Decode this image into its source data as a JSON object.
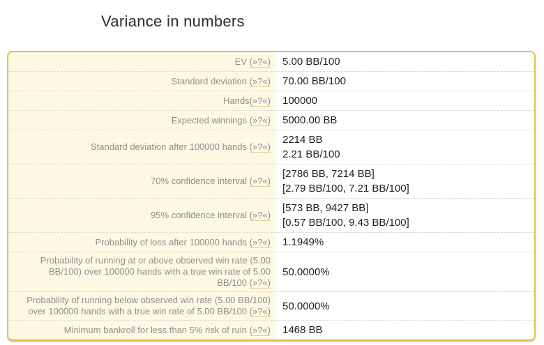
{
  "title": "Variance in numbers",
  "tooltip_marker": "(»?«)",
  "colors": {
    "border": "#e4bd55",
    "row_bg": "#fcf8e3",
    "value_bg": "#ffffff",
    "label_text": "#8e8e8e",
    "value_text": "#1f1f1f",
    "separator": "#d9d9d9",
    "tooltip_underline": "#e0d09e",
    "title_text": "#2b2b2b"
  },
  "table": {
    "rows": [
      {
        "label": "EV",
        "marker_space": true,
        "values": [
          "5.00 BB/100"
        ]
      },
      {
        "label": "Standard deviation",
        "marker_space": true,
        "values": [
          "70.00 BB/100"
        ]
      },
      {
        "label": "Hands",
        "marker_space": false,
        "values": [
          "100000"
        ]
      },
      {
        "label": "Expected winnings",
        "marker_space": true,
        "values": [
          "5000.00 BB"
        ]
      },
      {
        "label": "Standard deviation after 100000 hands",
        "marker_space": true,
        "values": [
          "2214 BB",
          "2.21 BB/100"
        ]
      },
      {
        "label": "70% confidence interval",
        "marker_space": true,
        "values": [
          "[2786 BB, 7214 BB]",
          "[2.79 BB/100, 7.21 BB/100]"
        ]
      },
      {
        "label": "95% confidence interval",
        "marker_space": true,
        "values": [
          "[573 BB, 9427 BB]",
          "[0.57 BB/100, 9.43 BB/100]"
        ]
      },
      {
        "label": "Probability of loss after 100000 hands",
        "marker_space": true,
        "values": [
          "1.1949%"
        ]
      },
      {
        "label": "Probability of running at or above observed win rate (5.00 BB/100) over 100000 hands with a true win rate of 5.00 BB/100",
        "marker_space": true,
        "values": [
          "50.0000%"
        ]
      },
      {
        "label": "Probability of running below observed win rate (5.00 BB/100) over 100000 hands with a true win rate of 5.00 BB/100",
        "marker_space": true,
        "values": [
          "50.0000%"
        ]
      },
      {
        "label": "Minimum bankroll for less than 5% risk of ruin",
        "marker_space": true,
        "values": [
          "1468 BB"
        ]
      }
    ]
  }
}
